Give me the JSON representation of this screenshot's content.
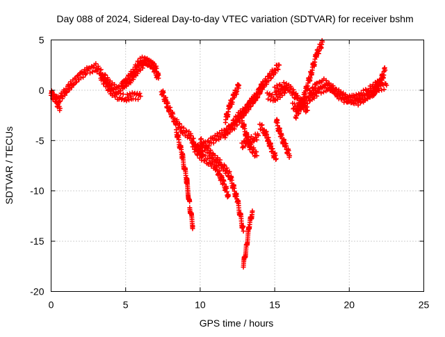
{
  "chart_data": {
    "type": "scatter",
    "title": "Day 088 of 2024, Sidereal Day-to-day VTEC variation (SDTVAR) for receiver bshm",
    "xlabel": "GPS time / hours",
    "ylabel": "SDTVAR / TECUs",
    "xlim": [
      0,
      25
    ],
    "ylim": [
      -20,
      5
    ],
    "xticks": [
      0,
      5,
      10,
      15,
      20,
      25
    ],
    "yticks": [
      -20,
      -15,
      -10,
      -5,
      0,
      5
    ],
    "grid": true,
    "marker": "+",
    "series": [
      {
        "name": "SDTVAR",
        "color": "#ff0000",
        "segments": [
          {
            "x": [
              0,
              0.5,
              1,
              1.5,
              2,
              2.5,
              3,
              3.5,
              4,
              4.5,
              5,
              5.5,
              6,
              6.5,
              7,
              7.2
            ],
            "y": [
              -0.5,
              -1,
              0,
              0.8,
              1.5,
              2,
              2.3,
              1.5,
              0.5,
              0,
              0.8,
              1.8,
              3,
              2.8,
              2.2,
              1.5
            ]
          },
          {
            "x": [
              0,
              0.3,
              0.6
            ],
            "y": [
              -0.3,
              -1,
              -1.8
            ]
          },
          {
            "x": [
              3.3,
              3.7,
              4.1,
              4.5,
              5,
              5.5,
              6
            ],
            "y": [
              1.5,
              0.5,
              -0.2,
              -0.6,
              -0.8,
              -0.5,
              -0.6
            ]
          },
          {
            "x": [
              4.8,
              5.3,
              5.8,
              6.3,
              6.8,
              7.2
            ],
            "y": [
              0.5,
              1,
              2,
              2.8,
              2.5,
              1.2
            ]
          },
          {
            "x": [
              7.4,
              7.8,
              8.3,
              8.8,
              9.3,
              9.7,
              10.2
            ],
            "y": [
              0,
              -1.5,
              -3,
              -4,
              -4.5,
              -5.5,
              -6.5
            ]
          },
          {
            "x": [
              8.4,
              8.8,
              9.1,
              9.3,
              9.5
            ],
            "y": [
              -4,
              -6.5,
              -9,
              -11.5,
              -13.5
            ]
          },
          {
            "x": [
              9.5,
              10,
              10.5,
              11,
              11.5,
              11.9
            ],
            "y": [
              -5.5,
              -6.5,
              -7,
              -7.5,
              -9,
              -10.5
            ]
          },
          {
            "x": [
              10,
              10.5,
              11,
              11.5,
              12,
              12.5,
              12.9
            ],
            "y": [
              -5,
              -6,
              -6.8,
              -7.5,
              -8.5,
              -11,
              -14
            ]
          },
          {
            "x": [
              12.9,
              13.1,
              13.3,
              13.5
            ],
            "y": [
              -17.5,
              -15.5,
              -13.5,
              -12
            ]
          },
          {
            "x": [
              9.8,
              10.3,
              10.8,
              11.3,
              11.8,
              12.3,
              12.8,
              13.3,
              13.8,
              14.2
            ],
            "y": [
              -6,
              -5.5,
              -5,
              -4.5,
              -4,
              -3.5,
              -2.5,
              -1.5,
              -0.5,
              0.5
            ]
          },
          {
            "x": [
              11.6,
              12.1,
              12.6,
              13,
              13.4,
              13.8,
              14.2,
              14.6,
              15,
              15.3
            ],
            "y": [
              -4.5,
              -3.5,
              -2.5,
              -2,
              -1.2,
              -0.5,
              0.5,
              1.2,
              2,
              2.5
            ]
          },
          {
            "x": [
              11.7,
              12,
              12.3,
              12.6
            ],
            "y": [
              -3,
              -1.5,
              -0.5,
              0.5
            ]
          },
          {
            "x": [
              12.8,
              13.2,
              13.6,
              13.9
            ],
            "y": [
              -5.5,
              -5,
              -4.8,
              -4.5
            ]
          },
          {
            "x": [
              12.8,
              13.3,
              13.8
            ],
            "y": [
              -3,
              -5.5,
              -6.5
            ]
          },
          {
            "x": [
              14,
              14.3,
              14.6,
              14.8,
              15.1
            ],
            "y": [
              -3.5,
              -4,
              -5,
              -6,
              -6.8
            ]
          },
          {
            "x": [
              15.1,
              15.4,
              15.7,
              16
            ],
            "y": [
              -3,
              -4.5,
              -5.5,
              -6.5
            ]
          },
          {
            "x": [
              14.5,
              15,
              15.5,
              15.8
            ],
            "y": [
              -0.5,
              -0.8,
              -0.2,
              0.2
            ]
          },
          {
            "x": [
              15,
              15.5,
              16,
              16.5,
              16.9,
              17.2
            ],
            "y": [
              0,
              0.5,
              0.2,
              -0.8,
              -1.5,
              -2
            ]
          },
          {
            "x": [
              16.2,
              16.6,
              17,
              17.4,
              17.8,
              18.2
            ],
            "y": [
              -1.5,
              -2,
              -0.5,
              1.5,
              3.5,
              4.8
            ]
          },
          {
            "x": [
              16.4,
              16.8,
              17.2,
              17.6,
              18,
              18.5,
              19,
              19.5,
              20,
              20.5,
              21,
              21.5,
              22,
              22.5
            ],
            "y": [
              -2.5,
              -1.5,
              -1,
              -0.5,
              0,
              0.3,
              0,
              -0.5,
              -1,
              -1.2,
              -0.8,
              -0.2,
              0.3,
              0.5
            ]
          },
          {
            "x": [
              17.3,
              17.8,
              18.3,
              18.8,
              19.3,
              19.8,
              20.3,
              20.8,
              21.3,
              21.8,
              22.2
            ],
            "y": [
              -0.5,
              0.5,
              0.8,
              0.3,
              -0.5,
              -1,
              -0.8,
              -0.5,
              0,
              0.5,
              1
            ]
          },
          {
            "x": [
              21.2,
              21.6,
              22,
              22.4
            ],
            "y": [
              -0.5,
              -0.3,
              0.5,
              2
            ]
          }
        ]
      }
    ]
  }
}
